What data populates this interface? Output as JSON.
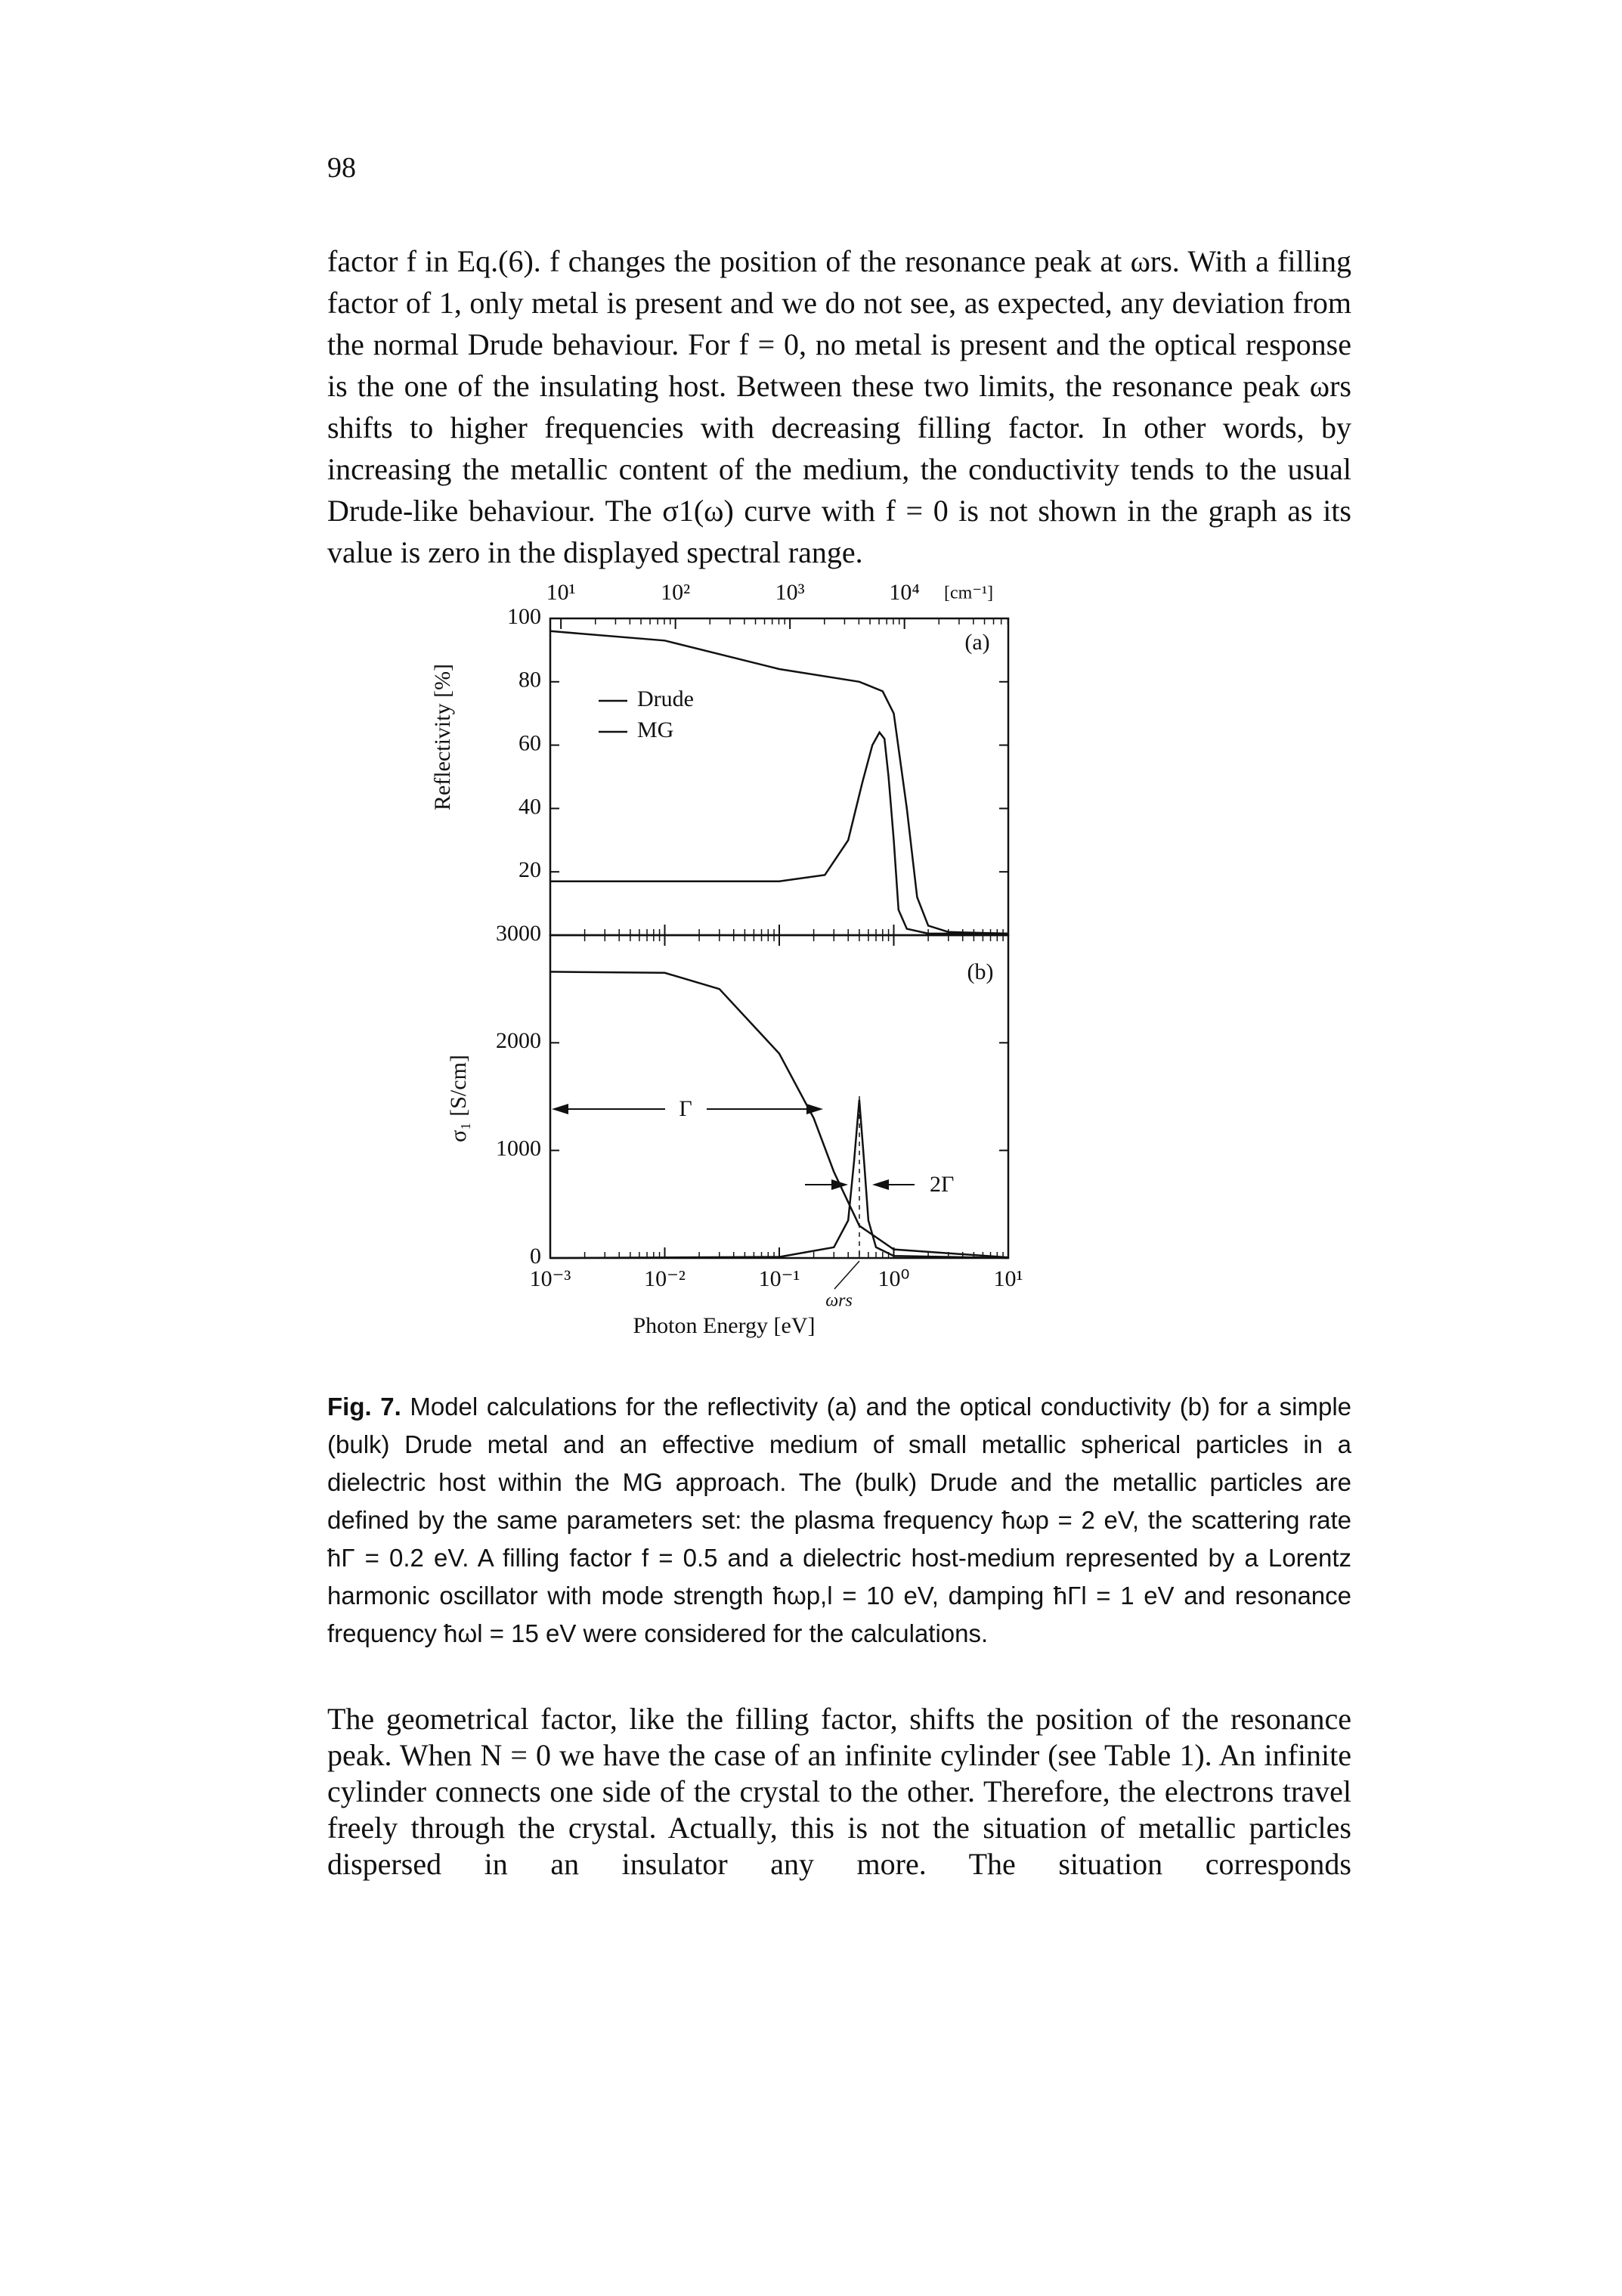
{
  "page_number": "98",
  "paragraphs": [
    "factor f in Eq.(6). f changes the position of the resonance peak at ωrs. With a filling factor of 1, only metal is present and we do not see, as expected, any deviation from the normal Drude behaviour. For f = 0, no metal is present and the optical response is the one of the insulating host. Between these two limits, the resonance peak ωrs shifts to higher frequencies with decreasing filling factor. In other words, by increasing the metallic content of the medium, the conductivity tends to the usual Drude-like behaviour. The σ1(ω) curve with f = 0 is not shown in the graph as its value is zero in the displayed spectral range.",
    "The geometrical factor, like the filling factor, shifts the position of the resonance peak. When N = 0 we have the case of an infinite cylinder (see Table 1). An infinite cylinder connects one side of the crystal to the other. Therefore, the electrons travel freely through the crystal. Actually, this is not the situation of metallic particles dispersed in an insulator any more. The situation corresponds"
  ],
  "caption": {
    "label": "Fig. 7.",
    "text": "Model calculations for the reflectivity (a) and the optical conductivity (b) for a simple (bulk) Drude metal and an effective medium of small metallic spherical particles in a dielectric host within the MG approach. The (bulk) Drude and the metallic particles are defined by the same parameters set: the plasma frequency ħωp = 2 eV, the scattering rate ħΓ = 0.2 eV. A filling factor f = 0.5 and a dielectric host-medium represented by a Lorentz harmonic oscillator with mode strength ħωp,l = 10 eV, damping ħΓl = 1 eV and resonance frequency ħωl = 15 eV were considered for the calculations."
  },
  "chart_data": [
    {
      "type": "line",
      "panel_label": "(a)",
      "y_label": "Reflectivity [%]",
      "x2_label": "[cm⁻¹]",
      "xscale": "log",
      "xlim": [
        0.001,
        10
      ],
      "ylim": [
        0,
        100
      ],
      "yticks": [
        20,
        40,
        60,
        80,
        100
      ],
      "x2lim": [
        8.0655,
        80655
      ],
      "x2ticks": [
        {
          "value": 10,
          "label": "10¹"
        },
        {
          "value": 100,
          "label": "10²"
        },
        {
          "value": 1000,
          "label": "10³"
        },
        {
          "value": 10000,
          "label": "10⁴"
        }
      ],
      "legend": "center-left",
      "series": [
        {
          "name": "Drude",
          "color": "#111111",
          "x": [
            0.001,
            0.01,
            0.1,
            0.5,
            0.8,
            1.0,
            1.3,
            1.6,
            2.0,
            3,
            10
          ],
          "values": [
            96,
            93,
            84,
            80,
            77,
            70,
            40,
            12,
            3,
            1,
            0.5
          ]
        },
        {
          "name": "MG",
          "color": "#111111",
          "x": [
            0.001,
            0.1,
            0.25,
            0.4,
            0.53,
            0.65,
            0.75,
            0.83,
            0.9,
            1.0,
            1.1,
            1.3,
            2,
            10
          ],
          "values": [
            17,
            17,
            19,
            30,
            48,
            60,
            64,
            62,
            50,
            30,
            8,
            2,
            0.5,
            0.5
          ]
        }
      ]
    },
    {
      "type": "line",
      "panel_label": "(b)",
      "y_label": "σ₁ [S/cm]",
      "x_label": "Photon Energy [eV]",
      "xscale": "log",
      "xlim": [
        0.001,
        10
      ],
      "ylim": [
        0,
        3000
      ],
      "yticks": [
        0,
        1000,
        2000,
        3000
      ],
      "xticks": [
        {
          "value": 0.001,
          "label": "10⁻³"
        },
        {
          "value": 0.01,
          "label": "10⁻²"
        },
        {
          "value": 0.1,
          "label": "10⁻¹"
        },
        {
          "value": 1,
          "label": "10⁰"
        },
        {
          "value": 10,
          "label": "10¹"
        }
      ],
      "annotations": [
        "Γ",
        "2Γ",
        "ωrs"
      ],
      "series": [
        {
          "color": "#111111",
          "x": [
            0.001,
            0.01,
            0.03,
            0.1,
            0.2,
            0.3,
            0.5,
            1,
            10
          ],
          "values": [
            2660,
            2650,
            2500,
            1900,
            1300,
            800,
            300,
            80,
            5
          ]
        },
        {
          "color": "#111111",
          "x": [
            0.001,
            0.1,
            0.3,
            0.4,
            0.45,
            0.5,
            0.55,
            0.6,
            0.7,
            1,
            10
          ],
          "values": [
            0,
            10,
            100,
            350,
            900,
            1470,
            900,
            350,
            100,
            20,
            0
          ]
        }
      ]
    }
  ]
}
